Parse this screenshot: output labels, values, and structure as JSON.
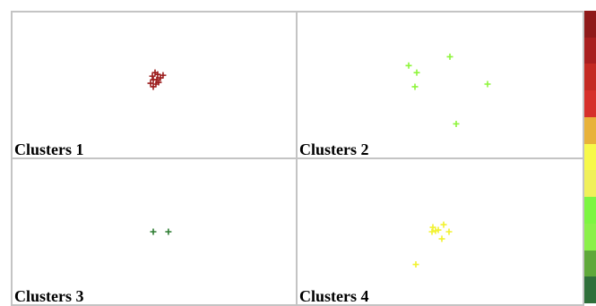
{
  "chart_data": {
    "type": "scatter",
    "xlim": [
      0,
      318
    ],
    "ylim": [
      0,
      164
    ],
    "panels": [
      {
        "title": "Clusters 1",
        "color": "#9b1b1b",
        "points": [
          [
            157,
            92
          ],
          [
            160,
            96
          ],
          [
            163,
            94
          ],
          [
            166,
            90
          ],
          [
            169,
            93
          ],
          [
            162,
            88
          ],
          [
            164,
            85
          ],
          [
            158,
            80
          ],
          [
            161,
            83
          ],
          [
            155,
            84
          ],
          [
            158,
            88
          ]
        ]
      },
      {
        "title": "Clusters 2",
        "color": "#8ef53b",
        "points": [
          [
            124,
            104
          ],
          [
            133,
            96
          ],
          [
            131,
            80
          ],
          [
            170,
            114
          ],
          [
            212,
            83
          ],
          [
            177,
            38
          ]
        ]
      },
      {
        "title": "Clusters 3",
        "color": "#2e7d32",
        "points": [
          [
            158,
            82
          ],
          [
            175,
            82
          ]
        ]
      },
      {
        "title": "Clusters 4",
        "color": "#f2f230",
        "points": [
          [
            151,
            87
          ],
          [
            154,
            83
          ],
          [
            163,
            90
          ],
          [
            157,
            84
          ],
          [
            169,
            82
          ],
          [
            161,
            74
          ],
          [
            150,
            82
          ],
          [
            132,
            45
          ]
        ]
      }
    ],
    "colorbar": [
      "#8f1a1a",
      "#a81f1f",
      "#c42a22",
      "#d6302a",
      "#e8b23a",
      "#f7f94a",
      "#f0f05a",
      "#7df542",
      "#8bf04a",
      "#5fa83a",
      "#2f6f3a"
    ]
  }
}
